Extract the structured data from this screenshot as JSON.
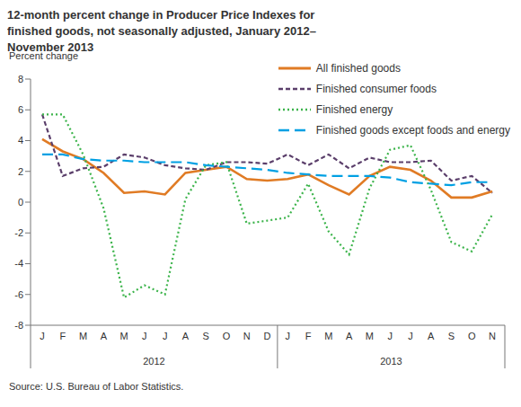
{
  "chart_data": {
    "type": "line",
    "title": "12-month percent change in Producer Price Indexes for finished goods, not seasonally adjusted, January 2012–November 2013",
    "y_label": "Percent change",
    "source": "Source: U.S. Bureau of Labor Statistics.",
    "categories": [
      "J",
      "F",
      "M",
      "A",
      "M",
      "J",
      "J",
      "A",
      "S",
      "O",
      "N",
      "D",
      "J",
      "F",
      "M",
      "A",
      "M",
      "J",
      "J",
      "A",
      "S",
      "O",
      "N"
    ],
    "x_groups": [
      {
        "label": "2012",
        "count": 12
      },
      {
        "label": "2013",
        "count": 11
      }
    ],
    "series": [
      {
        "name": "All finished goods",
        "color": "#E07B24",
        "line_style": "solid",
        "values": [
          4.1,
          3.3,
          2.8,
          1.9,
          0.6,
          0.7,
          0.5,
          1.9,
          2.1,
          2.3,
          1.5,
          1.4,
          1.5,
          1.8,
          1.1,
          0.5,
          1.7,
          2.3,
          2.1,
          1.4,
          0.3,
          0.3,
          0.7
        ]
      },
      {
        "name": "Finished consumer foods",
        "color": "#5B3F6B",
        "line_style": "dashed",
        "values": [
          5.7,
          1.7,
          2.2,
          2.3,
          3.1,
          2.9,
          2.4,
          2.2,
          2.1,
          2.6,
          2.6,
          2.5,
          3.1,
          2.4,
          3.1,
          2.2,
          2.9,
          2.6,
          2.6,
          2.7,
          1.4,
          1.7,
          0.6
        ]
      },
      {
        "name": "Finished energy",
        "color": "#3CB44B",
        "line_style": "dotted",
        "values": [
          5.7,
          5.7,
          3.1,
          -0.4,
          -6.2,
          -5.4,
          -6.0,
          0.2,
          2.4,
          2.6,
          -1.4,
          -1.2,
          -1.0,
          1.2,
          -1.9,
          -3.4,
          0.9,
          3.4,
          3.7,
          0.8,
          -2.6,
          -3.2,
          -0.8
        ]
      },
      {
        "name": "Finished goods except foods and energy",
        "color": "#00A0E3",
        "line_style": "longdash",
        "values": [
          3.1,
          3.1,
          2.8,
          2.7,
          2.7,
          2.6,
          2.6,
          2.6,
          2.4,
          2.3,
          2.2,
          2.1,
          1.9,
          1.8,
          1.7,
          1.7,
          1.7,
          1.6,
          1.3,
          1.2,
          1.1,
          1.3,
          1.3
        ]
      }
    ],
    "ylim": [
      -8,
      8
    ],
    "yticks": [
      -8,
      -6,
      -4,
      -2,
      0,
      2,
      4,
      6,
      8
    ],
    "grid": false,
    "legend": "top-right"
  }
}
